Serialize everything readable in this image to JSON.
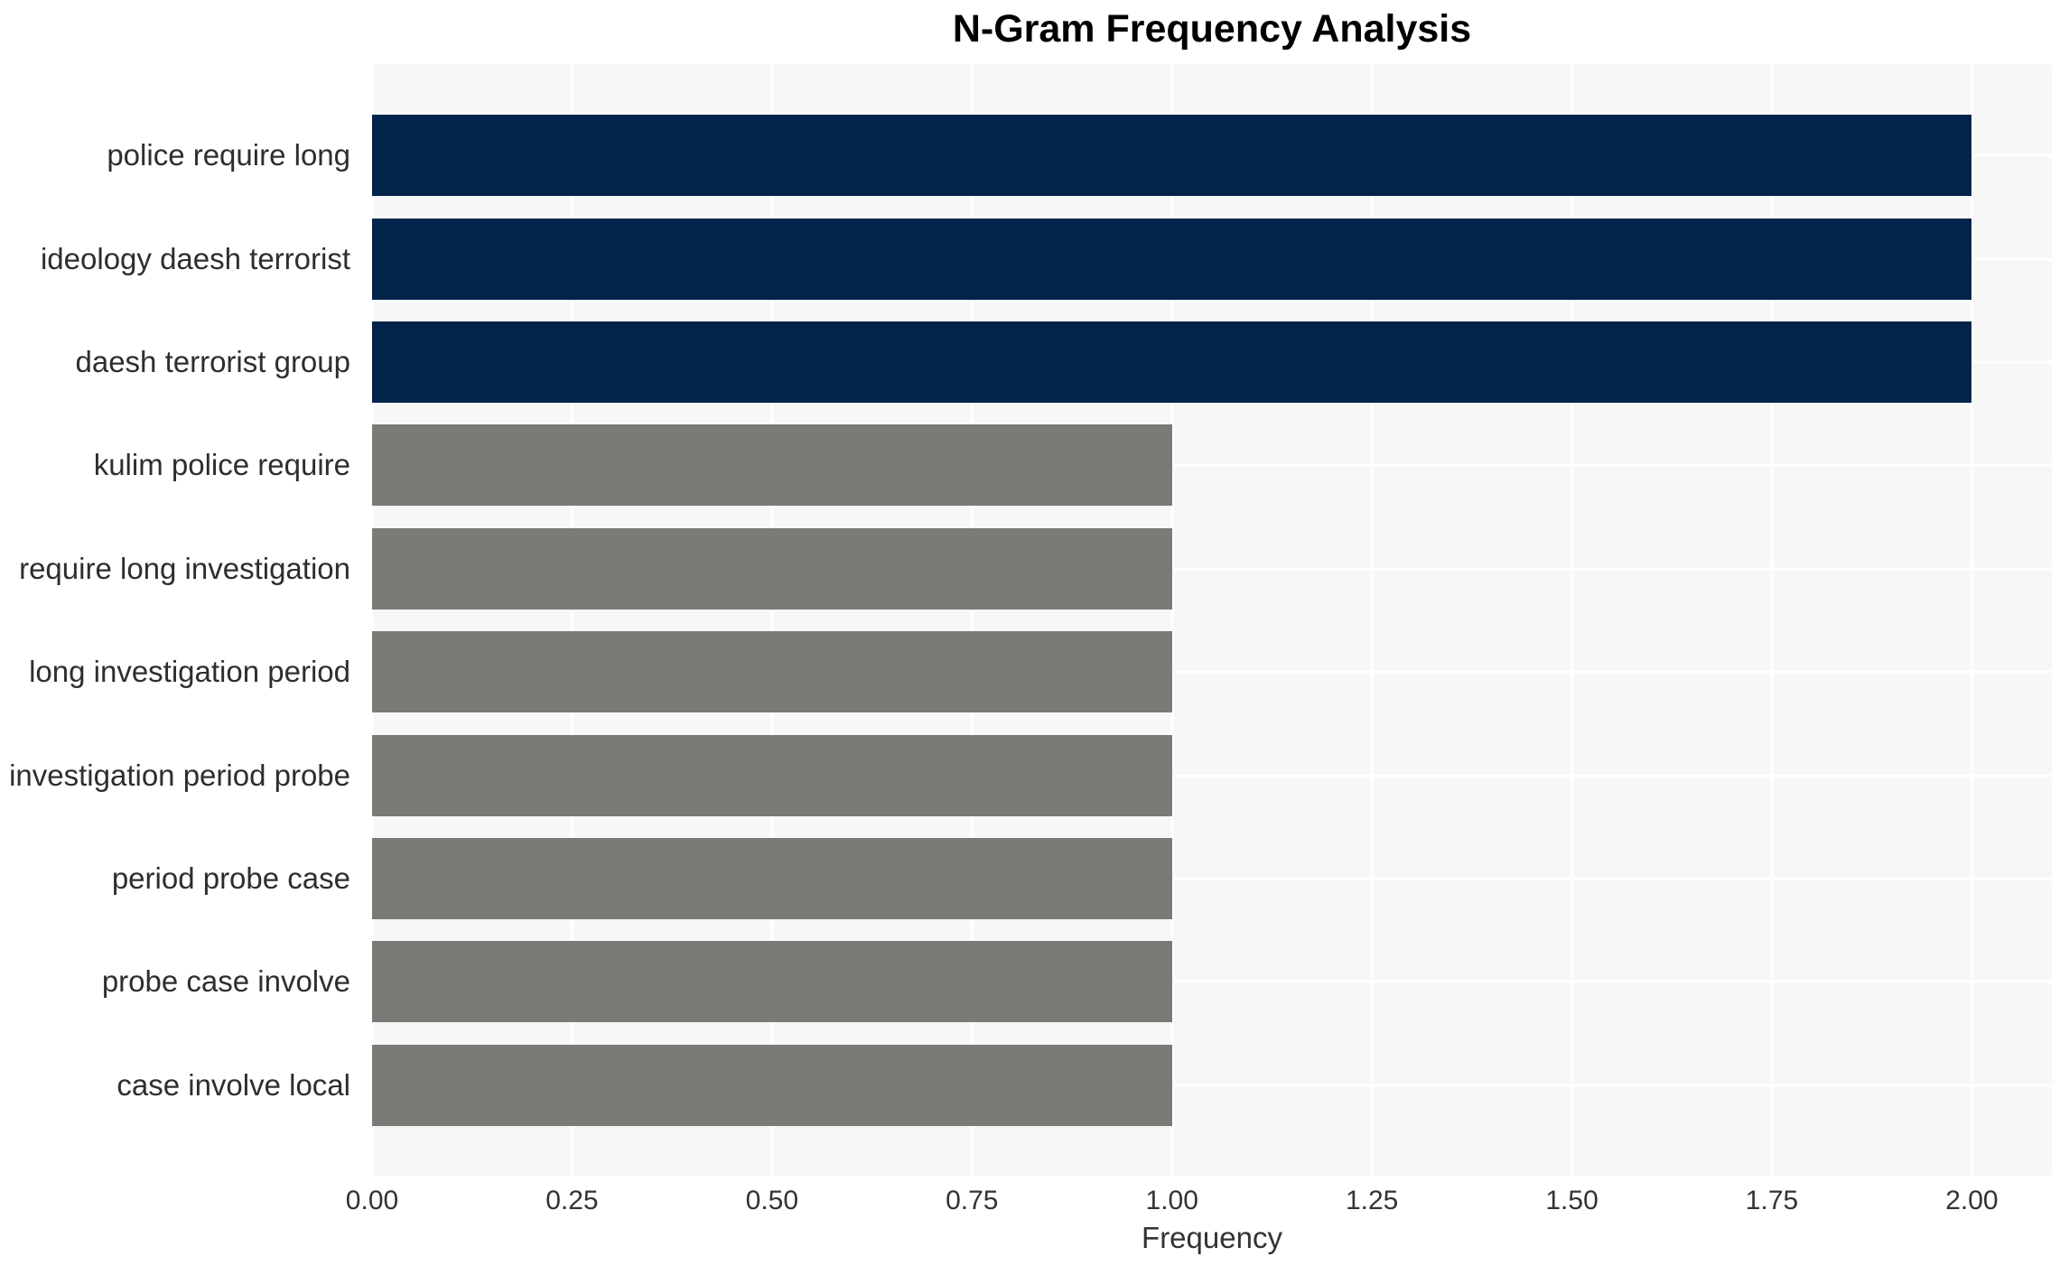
{
  "chart_data": {
    "type": "bar",
    "orientation": "horizontal",
    "title": "N-Gram Frequency Analysis",
    "xlabel": "Frequency",
    "ylabel": "",
    "categories": [
      "police require long",
      "ideology daesh terrorist",
      "daesh terrorist group",
      "kulim police require",
      "require long investigation",
      "long investigation period",
      "investigation period probe",
      "period probe case",
      "probe case involve",
      "case involve local"
    ],
    "values": [
      2.0,
      2.0,
      2.0,
      1.0,
      1.0,
      1.0,
      1.0,
      1.0,
      1.0,
      1.0
    ],
    "bar_colors": [
      "#02234A",
      "#02234A",
      "#02234A",
      "#7B7A77",
      "#7B7A77",
      "#7B7A77",
      "#7B7A77",
      "#7B7A77",
      "#7B7A77",
      "#7B7A77"
    ],
    "xlim": [
      0,
      2.1
    ],
    "xticks": [
      {
        "value": 0.0,
        "label": "0.00"
      },
      {
        "value": 0.25,
        "label": "0.25"
      },
      {
        "value": 0.5,
        "label": "0.50"
      },
      {
        "value": 0.75,
        "label": "0.75"
      },
      {
        "value": 1.0,
        "label": "1.00"
      },
      {
        "value": 1.25,
        "label": "1.25"
      },
      {
        "value": 1.5,
        "label": "1.50"
      },
      {
        "value": 1.75,
        "label": "1.75"
      },
      {
        "value": 2.0,
        "label": "2.00"
      }
    ],
    "grid": true,
    "legend": false,
    "colors": {
      "high_frequency_bar": "#02234A",
      "low_frequency_bar": "#7B7A77",
      "plot_background": "#F7F7F7",
      "gridline": "#FFFFFF",
      "title_text": "#000000",
      "axis_text": "#2E2E2E"
    }
  }
}
